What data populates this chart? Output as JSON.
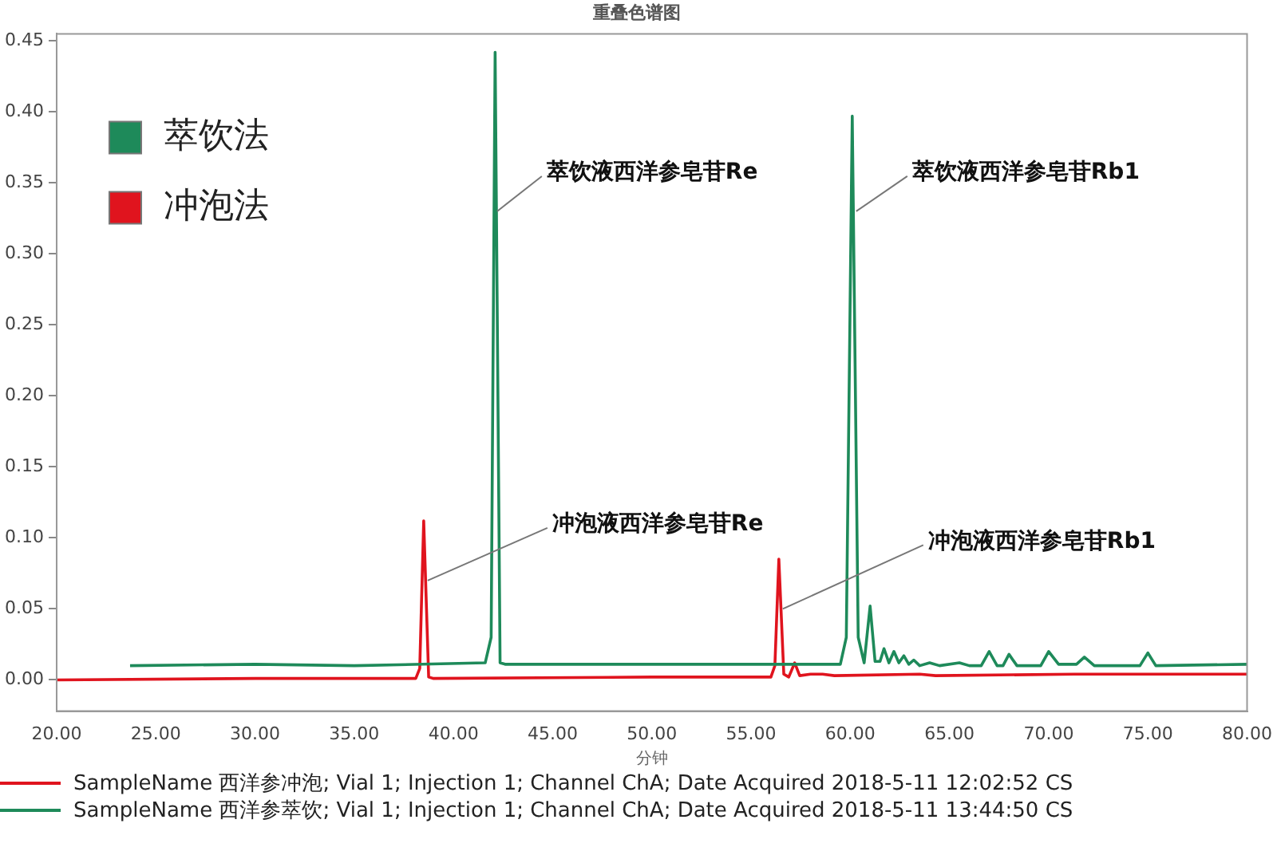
{
  "chart_data": {
    "type": "line",
    "title": "重叠色谱图",
    "xlabel": "分钟",
    "xlim": [
      20,
      80
    ],
    "ylim": [
      -0.022,
      0.455
    ],
    "xticks": [
      {
        "value": 20,
        "label": "20.00"
      },
      {
        "value": 25,
        "label": "25.00"
      },
      {
        "value": 30,
        "label": "30.00"
      },
      {
        "value": 35,
        "label": "35.00"
      },
      {
        "value": 40,
        "label": "40.00"
      },
      {
        "value": 45,
        "label": "45.00"
      },
      {
        "value": 50,
        "label": "50.00"
      },
      {
        "value": 55,
        "label": "55.00"
      },
      {
        "value": 60,
        "label": "60.00"
      },
      {
        "value": 65,
        "label": "65.00"
      },
      {
        "value": 70,
        "label": "70.00"
      },
      {
        "value": 75,
        "label": "75.00"
      },
      {
        "value": 80,
        "label": "80.00"
      }
    ],
    "yticks": [
      {
        "value": 0,
        "label": "0.00"
      },
      {
        "value": 0.05,
        "label": "0.05"
      },
      {
        "value": 0.1,
        "label": "0.10"
      },
      {
        "value": 0.15,
        "label": "0.15"
      },
      {
        "value": 0.2,
        "label": "0.20"
      },
      {
        "value": 0.25,
        "label": "0.25"
      },
      {
        "value": 0.3,
        "label": "0.30"
      },
      {
        "value": 0.35,
        "label": "0.35"
      },
      {
        "value": 0.4,
        "label": "0.40"
      },
      {
        "value": 0.45,
        "label": "0.45"
      }
    ],
    "grid": false,
    "legend": "top left",
    "marker": "none",
    "line_style": "solid",
    "series": [
      {
        "name": "萃饮法",
        "color": "#1e8a5a",
        "x": [
          23.7,
          30,
          35,
          41.6,
          41.9,
          42.1,
          42.35,
          42.6,
          50,
          59.5,
          59.8,
          60.1,
          60.4,
          60.7,
          61.0,
          61.25,
          61.5,
          61.7,
          61.95,
          62.2,
          62.45,
          62.7,
          62.95,
          63.2,
          63.5,
          64.0,
          64.5,
          65.5,
          66.0,
          66.6,
          67.0,
          67.4,
          67.7,
          68.0,
          68.4,
          69.6,
          70.0,
          70.5,
          71.4,
          71.8,
          72.3,
          74.6,
          75.0,
          75.4,
          80
        ],
        "values": [
          0.01,
          0.011,
          0.01,
          0.012,
          0.03,
          0.442,
          0.012,
          0.011,
          0.011,
          0.011,
          0.03,
          0.397,
          0.03,
          0.012,
          0.052,
          0.013,
          0.013,
          0.022,
          0.012,
          0.02,
          0.012,
          0.017,
          0.011,
          0.014,
          0.01,
          0.012,
          0.01,
          0.012,
          0.01,
          0.01,
          0.02,
          0.01,
          0.01,
          0.018,
          0.01,
          0.01,
          0.02,
          0.011,
          0.011,
          0.016,
          0.01,
          0.01,
          0.019,
          0.01,
          0.011
        ]
      },
      {
        "name": "冲泡法",
        "color": "#e0141e",
        "x": [
          20,
          30,
          38.1,
          38.3,
          38.5,
          38.75,
          39.0,
          50,
          56.0,
          56.2,
          56.4,
          56.65,
          56.9,
          57.2,
          57.45,
          58.0,
          58.6,
          59.2,
          63.5,
          64.3,
          71.3,
          80
        ],
        "values": [
          0.0,
          0.001,
          0.001,
          0.008,
          0.112,
          0.002,
          0.001,
          0.002,
          0.002,
          0.01,
          0.085,
          0.004,
          0.002,
          0.012,
          0.003,
          0.004,
          0.004,
          0.003,
          0.004,
          0.003,
          0.004,
          0.004
        ]
      }
    ],
    "annotations": [
      {
        "text": "萃饮液西洋参皂苷Re",
        "x": 42.2,
        "y": 0.33
      },
      {
        "text": "萃饮液西洋参皂苷Rb1",
        "x": 60.3,
        "y": 0.33
      },
      {
        "text": "冲泡液西洋参皂苷Re",
        "x": 38.7,
        "y": 0.07
      },
      {
        "text": "冲泡液西洋参皂苷Rb1",
        "x": 56.6,
        "y": 0.05
      },
      "SampleName 西洋参冲泡; Vial 1; Injection 1; Channel ChA; Date Acquired 2018-5-11 12:02:52 CS",
      "SampleName 西洋参萃饮; Vial 1; Injection 1; Channel ChA; Date Acquired 2018-5-11 13:44:50 CS"
    ]
  }
}
